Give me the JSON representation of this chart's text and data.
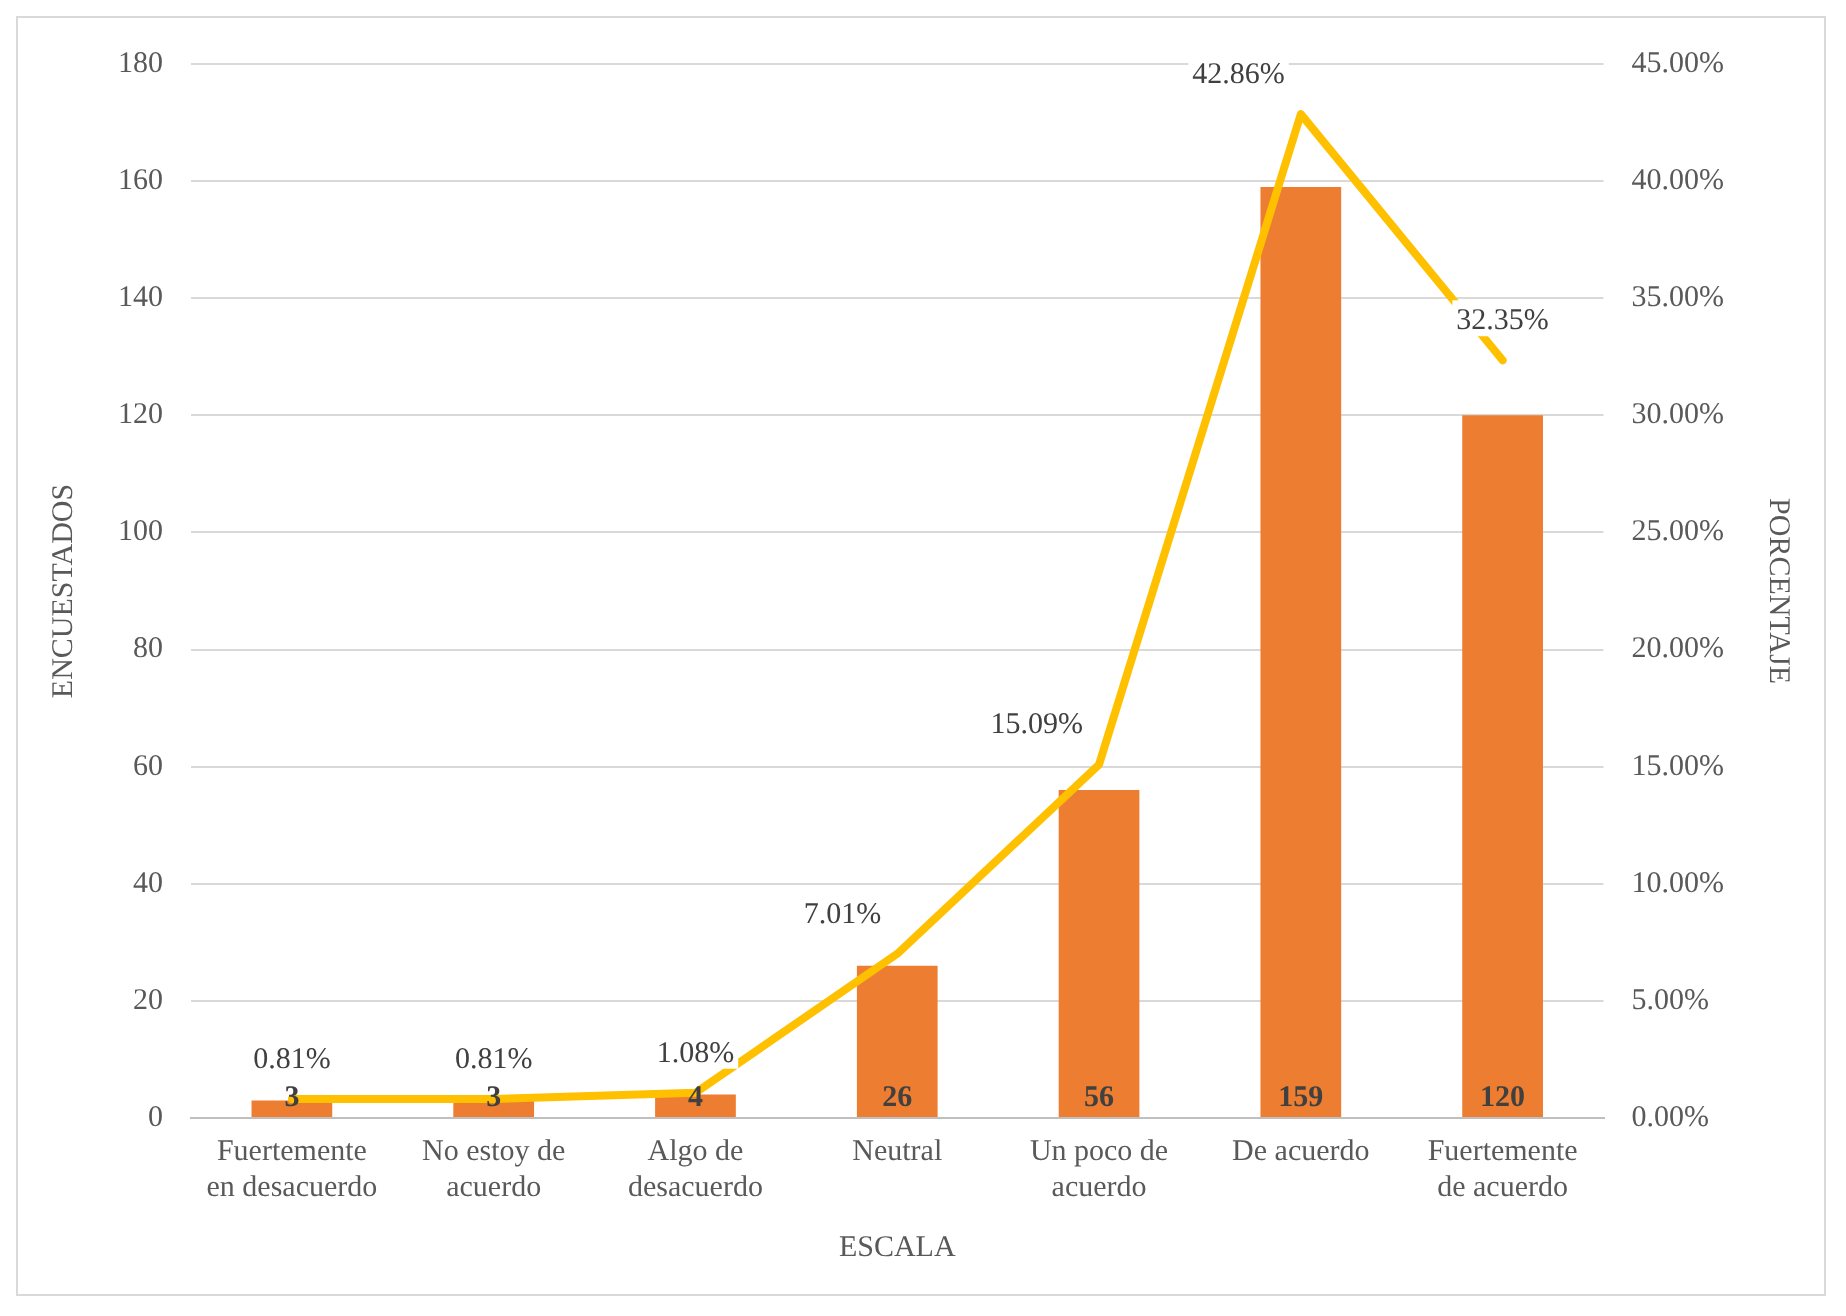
{
  "chart_data": {
    "type": "bar",
    "xlabel": "ESCALA",
    "ylabel": "ENCUESTADOS",
    "y2label": "PORCENTAJE",
    "categories": [
      "Fuertemente en desacuerdo",
      "No estoy de acuerdo",
      "Algo de desacuerdo",
      "Neutral",
      "Un poco de acuerdo",
      "De acuerdo",
      "Fuertemente de acuerdo"
    ],
    "series": [
      {
        "color": "#ed7d31",
        "values": [
          3,
          3,
          4,
          26,
          56,
          159,
          120
        ],
        "value_labels": [
          "3",
          "3",
          "4",
          "26",
          "56",
          "159",
          "120"
        ]
      },
      {
        "type": "line",
        "axis": "y2",
        "color": "#ffc000",
        "values": [
          0.81,
          0.81,
          1.08,
          7.01,
          15.09,
          42.86,
          32.35
        ],
        "value_labels": [
          "0.81%",
          "0.81%",
          "1.08%",
          "7.01%",
          "15.09%",
          "42.86%",
          "32.35%"
        ]
      }
    ],
    "ylim": [
      0,
      180
    ],
    "yticks": [
      0,
      20,
      40,
      60,
      80,
      100,
      120,
      140,
      160,
      180
    ],
    "y2lim": [
      0,
      45
    ],
    "y2ticks": [
      {
        "value": 0,
        "label": "0.00%"
      },
      {
        "value": 5,
        "label": "5.00%"
      },
      {
        "value": 10,
        "label": "10.00%"
      },
      {
        "value": 15,
        "label": "15.00%"
      },
      {
        "value": 20,
        "label": "20.00%"
      },
      {
        "value": 25,
        "label": "25.00%"
      },
      {
        "value": 30,
        "label": "30.00%"
      },
      {
        "value": 35,
        "label": "35.00%"
      },
      {
        "value": 40,
        "label": "40.00%"
      },
      {
        "value": 45,
        "label": "45.00%"
      }
    ],
    "grid": "y",
    "legend": false
  }
}
